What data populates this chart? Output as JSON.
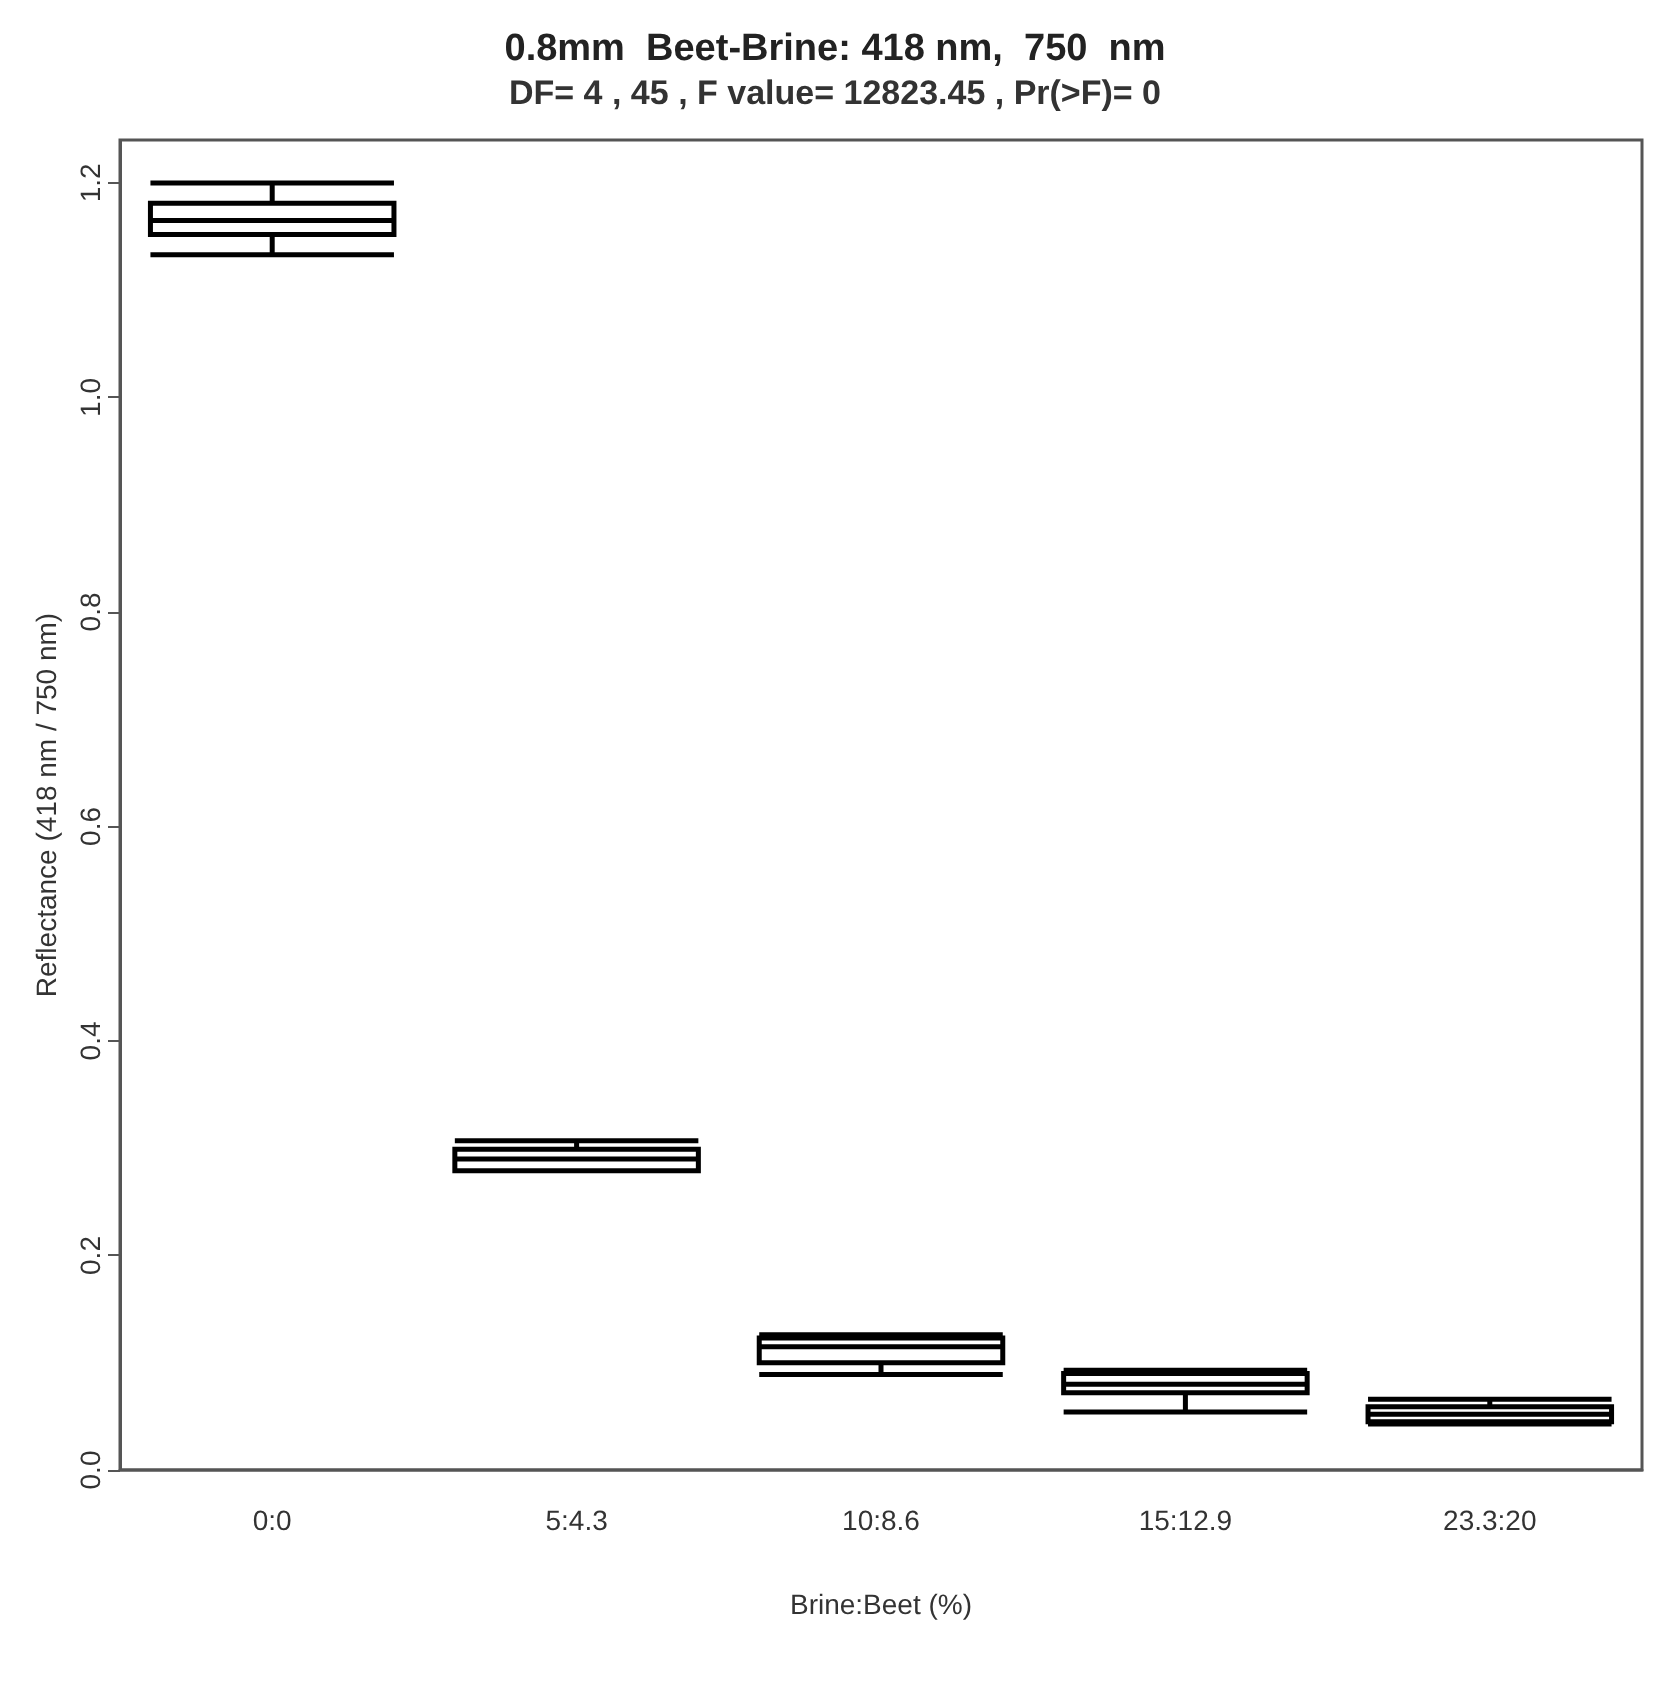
{
  "chart_data": {
    "type": "box",
    "title": "0.8mm  Beet-Brine: 418 nm,  750  nm",
    "subtitle": "DF= 4 , 45 , F value= 12823.45 , Pr(>F)= 0",
    "xlabel": "Brine:Beet (%)",
    "ylabel": "Reflectance (418 nm / 750 nm)",
    "categories": [
      "0:0",
      "5:4.3",
      "10:8.6",
      "15:12.9",
      "23.3:20"
    ],
    "boxes": [
      {
        "low": 1.133,
        "q1": 1.152,
        "median": 1.165,
        "q3": 1.181,
        "high": 1.2
      },
      {
        "low": 0.279,
        "q1": 0.279,
        "median": 0.29,
        "q3": 0.299,
        "high": 0.307
      },
      {
        "low": 0.089,
        "q1": 0.1,
        "median": 0.115,
        "q3": 0.123,
        "high": 0.126
      },
      {
        "low": 0.054,
        "q1": 0.072,
        "median": 0.08,
        "q3": 0.09,
        "high": 0.093
      },
      {
        "low": 0.043,
        "q1": 0.045,
        "median": 0.052,
        "q3": 0.059,
        "high": 0.066
      }
    ],
    "color": "#000000",
    "ylim": [
      0,
      1.24
    ],
    "yticks": [
      {
        "value": 0,
        "label": "0.0"
      },
      {
        "value": 0.2,
        "label": "0.2"
      },
      {
        "value": 0.4,
        "label": "0.4"
      },
      {
        "value": 0.6,
        "label": "0.6"
      },
      {
        "value": 0.8,
        "label": "0.8"
      },
      {
        "value": 1,
        "label": "1.0"
      },
      {
        "value": 1.2,
        "label": "1.2"
      }
    ],
    "grid": false
  }
}
